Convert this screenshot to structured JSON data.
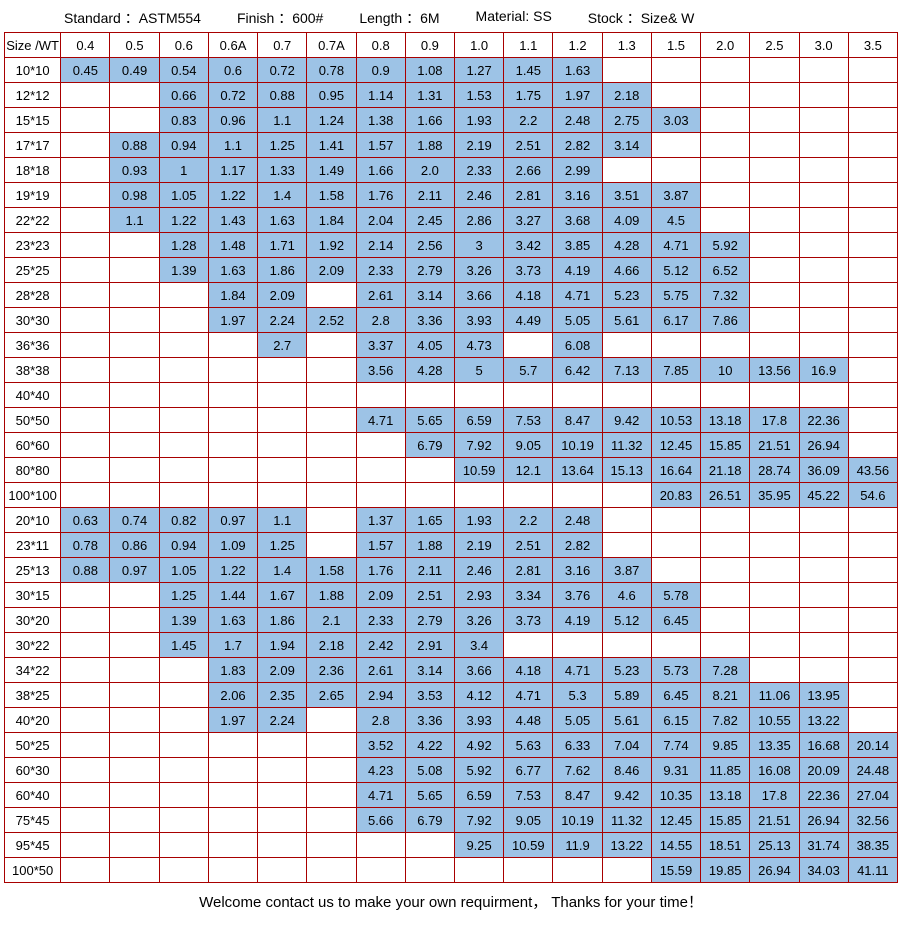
{
  "header": {
    "standard_label": "Standard ：",
    "standard_value": "ASTM554",
    "finish_label": "Finish ：",
    "finish_value": "600#",
    "length_label": "Length ：",
    "length_value": "6M",
    "material_label": "Material:",
    "material_value": "SS",
    "stock_label": "Stock ：",
    "stock_value": "Size& W"
  },
  "corner_label": "Size /WT",
  "wt_columns": [
    "0.4",
    "0.5",
    "0.6",
    "0.6A",
    "0.7",
    "0.7A",
    "0.8",
    "0.9",
    "1.0",
    "1.1",
    "1.2",
    "1.3",
    "1.5",
    "2.0",
    "2.5",
    "3.0",
    "3.5"
  ],
  "rows": [
    {
      "size": "10*10",
      "cells": [
        "0.45",
        "0.49",
        "0.54",
        "0.6",
        "0.72",
        "0.78",
        "0.9",
        "1.08",
        "1.27",
        "1.45",
        "1.63",
        "",
        "",
        "",
        "",
        "",
        ""
      ]
    },
    {
      "size": "12*12",
      "cells": [
        "",
        "",
        "0.66",
        "0.72",
        "0.88",
        "0.95",
        "1.14",
        "1.31",
        "1.53",
        "1.75",
        "1.97",
        "2.18",
        "",
        "",
        "",
        "",
        ""
      ]
    },
    {
      "size": "15*15",
      "cells": [
        "",
        "",
        "0.83",
        "0.96",
        "1.1",
        "1.24",
        "1.38",
        "1.66",
        "1.93",
        "2.2",
        "2.48",
        "2.75",
        "3.03",
        "",
        "",
        "",
        ""
      ]
    },
    {
      "size": "17*17",
      "cells": [
        "",
        "0.88",
        "0.94",
        "1.1",
        "1.25",
        "1.41",
        "1.57",
        "1.88",
        "2.19",
        "2.51",
        "2.82",
        "3.14",
        "",
        "",
        "",
        "",
        ""
      ]
    },
    {
      "size": "18*18",
      "cells": [
        "",
        "0.93",
        "1",
        "1.17",
        "1.33",
        "1.49",
        "1.66",
        "2.0",
        "2.33",
        "2.66",
        "2.99",
        "",
        "",
        "",
        "",
        "",
        ""
      ]
    },
    {
      "size": "19*19",
      "cells": [
        "",
        "0.98",
        "1.05",
        "1.22",
        "1.4",
        "1.58",
        "1.76",
        "2.11",
        "2.46",
        "2.81",
        "3.16",
        "3.51",
        "3.87",
        "",
        "",
        "",
        ""
      ]
    },
    {
      "size": "22*22",
      "cells": [
        "",
        "1.1",
        "1.22",
        "1.43",
        "1.63",
        "1.84",
        "2.04",
        "2.45",
        "2.86",
        "3.27",
        "3.68",
        "4.09",
        "4.5",
        "",
        "",
        "",
        ""
      ]
    },
    {
      "size": "23*23",
      "cells": [
        "",
        "",
        "1.28",
        "1.48",
        "1.71",
        "1.92",
        "2.14",
        "2.56",
        "3",
        "3.42",
        "3.85",
        "4.28",
        "4.71",
        "5.92",
        "",
        "",
        ""
      ]
    },
    {
      "size": "25*25",
      "cells": [
        "",
        "",
        "1.39",
        "1.63",
        "1.86",
        "2.09",
        "2.33",
        "2.79",
        "3.26",
        "3.73",
        "4.19",
        "4.66",
        "5.12",
        "6.52",
        "",
        "",
        ""
      ]
    },
    {
      "size": "28*28",
      "cells": [
        "",
        "",
        "",
        "1.84",
        "2.09",
        "",
        "2.61",
        "3.14",
        "3.66",
        "4.18",
        "4.71",
        "5.23",
        "5.75",
        "7.32",
        "",
        "",
        ""
      ]
    },
    {
      "size": "30*30",
      "cells": [
        "",
        "",
        "",
        "1.97",
        "2.24",
        "2.52",
        "2.8",
        "3.36",
        "3.93",
        "4.49",
        "5.05",
        "5.61",
        "6.17",
        "7.86",
        "",
        "",
        ""
      ]
    },
    {
      "size": "36*36",
      "cells": [
        "",
        "",
        "",
        "",
        "2.7",
        "",
        "3.37",
        "4.05",
        "4.73",
        "",
        "6.08",
        "",
        "",
        "",
        "",
        "",
        ""
      ]
    },
    {
      "size": "38*38",
      "cells": [
        "",
        "",
        "",
        "",
        "",
        "",
        "3.56",
        "4.28",
        "5",
        "5.7",
        "6.42",
        "7.13",
        "7.85",
        "10",
        "13.56",
        "16.9",
        ""
      ]
    },
    {
      "size": "40*40",
      "cells": [
        "",
        "",
        "",
        "",
        "",
        "",
        "",
        "",
        "",
        "",
        "",
        "",
        "",
        "",
        "",
        "",
        ""
      ]
    },
    {
      "size": "50*50",
      "cells": [
        "",
        "",
        "",
        "",
        "",
        "",
        "4.71",
        "5.65",
        "6.59",
        "7.53",
        "8.47",
        "9.42",
        "10.53",
        "13.18",
        "17.8",
        "22.36",
        ""
      ]
    },
    {
      "size": "60*60",
      "cells": [
        "",
        "",
        "",
        "",
        "",
        "",
        "",
        "6.79",
        "7.92",
        "9.05",
        "10.19",
        "11.32",
        "12.45",
        "15.85",
        "21.51",
        "26.94",
        ""
      ]
    },
    {
      "size": "80*80",
      "cells": [
        "",
        "",
        "",
        "",
        "",
        "",
        "",
        "",
        "10.59",
        "12.1",
        "13.64",
        "15.13",
        "16.64",
        "21.18",
        "28.74",
        "36.09",
        "43.56"
      ]
    },
    {
      "size": "100*100",
      "cells": [
        "",
        "",
        "",
        "",
        "",
        "",
        "",
        "",
        "",
        "",
        "",
        "",
        "20.83",
        "26.51",
        "35.95",
        "45.22",
        "54.6"
      ]
    },
    {
      "size": "20*10",
      "cells": [
        "0.63",
        "0.74",
        "0.82",
        "0.97",
        "1.1",
        "",
        "1.37",
        "1.65",
        "1.93",
        "2.2",
        "2.48",
        "",
        "",
        "",
        "",
        "",
        ""
      ]
    },
    {
      "size": "23*11",
      "cells": [
        "0.78",
        "0.86",
        "0.94",
        "1.09",
        "1.25",
        "",
        "1.57",
        "1.88",
        "2.19",
        "2.51",
        "2.82",
        "",
        "",
        "",
        "",
        "",
        ""
      ]
    },
    {
      "size": "25*13",
      "cells": [
        "0.88",
        "0.97",
        "1.05",
        "1.22",
        "1.4",
        "1.58",
        "1.76",
        "2.11",
        "2.46",
        "2.81",
        "3.16",
        "3.87",
        "",
        "",
        "",
        "",
        ""
      ]
    },
    {
      "size": "30*15",
      "cells": [
        "",
        "",
        "1.25",
        "1.44",
        "1.67",
        "1.88",
        "2.09",
        "2.51",
        "2.93",
        "3.34",
        "3.76",
        "4.6",
        "5.78",
        "",
        "",
        "",
        ""
      ]
    },
    {
      "size": "30*20",
      "cells": [
        "",
        "",
        "1.39",
        "1.63",
        "1.86",
        "2.1",
        "2.33",
        "2.79",
        "3.26",
        "3.73",
        "4.19",
        "5.12",
        "6.45",
        "",
        "",
        "",
        ""
      ]
    },
    {
      "size": "30*22",
      "cells": [
        "",
        "",
        "1.45",
        "1.7",
        "1.94",
        "2.18",
        "2.42",
        "2.91",
        "3.4",
        "",
        "",
        "",
        "",
        "",
        "",
        "",
        ""
      ]
    },
    {
      "size": "34*22",
      "cells": [
        "",
        "",
        "",
        "1.83",
        "2.09",
        "2.36",
        "2.61",
        "3.14",
        "3.66",
        "4.18",
        "4.71",
        "5.23",
        "5.73",
        "7.28",
        "",
        "",
        ""
      ]
    },
    {
      "size": "38*25",
      "cells": [
        "",
        "",
        "",
        "2.06",
        "2.35",
        "2.65",
        "2.94",
        "3.53",
        "4.12",
        "4.71",
        "5.3",
        "5.89",
        "6.45",
        "8.21",
        "11.06",
        "13.95",
        ""
      ]
    },
    {
      "size": "40*20",
      "cells": [
        "",
        "",
        "",
        "1.97",
        "2.24",
        "",
        "2.8",
        "3.36",
        "3.93",
        "4.48",
        "5.05",
        "5.61",
        "6.15",
        "7.82",
        "10.55",
        "13.22",
        ""
      ]
    },
    {
      "size": "50*25",
      "cells": [
        "",
        "",
        "",
        "",
        "",
        "",
        "3.52",
        "4.22",
        "4.92",
        "5.63",
        "6.33",
        "7.04",
        "7.74",
        "9.85",
        "13.35",
        "16.68",
        "20.14"
      ]
    },
    {
      "size": "60*30",
      "cells": [
        "",
        "",
        "",
        "",
        "",
        "",
        "4.23",
        "5.08",
        "5.92",
        "6.77",
        "7.62",
        "8.46",
        "9.31",
        "11.85",
        "16.08",
        "20.09",
        "24.48"
      ]
    },
    {
      "size": "60*40",
      "cells": [
        "",
        "",
        "",
        "",
        "",
        "",
        "4.71",
        "5.65",
        "6.59",
        "7.53",
        "8.47",
        "9.42",
        "10.35",
        "13.18",
        "17.8",
        "22.36",
        "27.04"
      ]
    },
    {
      "size": "75*45",
      "cells": [
        "",
        "",
        "",
        "",
        "",
        "",
        "5.66",
        "6.79",
        "7.92",
        "9.05",
        "10.19",
        "11.32",
        "12.45",
        "15.85",
        "21.51",
        "26.94",
        "32.56"
      ]
    },
    {
      "size": "95*45",
      "cells": [
        "",
        "",
        "",
        "",
        "",
        "",
        "",
        "",
        "9.25",
        "10.59",
        "11.9",
        "13.22",
        "14.55",
        "18.51",
        "25.13",
        "31.74",
        "38.35"
      ]
    },
    {
      "size": "100*50",
      "cells": [
        "",
        "",
        "",
        "",
        "",
        "",
        "",
        "",
        "",
        "",
        "",
        "",
        "15.59",
        "19.85",
        "26.94",
        "34.03",
        "41.11"
      ]
    }
  ],
  "footer_text": "Welcome contact us to make your own requirment，    Thanks for your time！",
  "colors": {
    "border": "#a80000",
    "fill": "#9dc3e6",
    "background": "#ffffff",
    "text": "#000000"
  }
}
